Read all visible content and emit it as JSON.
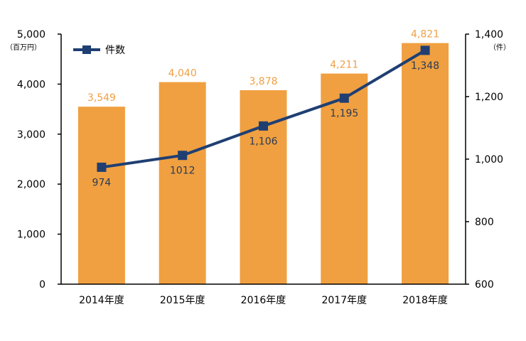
{
  "chart_data": {
    "type": "bar",
    "title": "",
    "categories": [
      "2014年度",
      "2015年度",
      "2016年度",
      "2017年度",
      "2018年度"
    ],
    "series": [
      {
        "type": "bar",
        "axis": "left",
        "color": "#f0a040",
        "label_color": "#f0a044",
        "values": [
          3549,
          4040,
          3878,
          4211,
          4821
        ],
        "labels": [
          "3,549",
          "4,040",
          "3,878",
          "4,211",
          "4,821"
        ]
      },
      {
        "name": "件数",
        "type": "line",
        "axis": "right",
        "color": "#1f3f73",
        "label_color": "#2b3a55",
        "values": [
          974,
          1012,
          1106,
          1195,
          1348
        ],
        "labels": [
          "974",
          "1012",
          "1,106",
          "1,195",
          "1,348"
        ]
      }
    ],
    "y_left": {
      "unit": "（百万円）",
      "ylim": [
        0,
        5000
      ],
      "ticks": [
        0,
        1000,
        2000,
        3000,
        4000,
        5000
      ],
      "tick_labels": [
        "0",
        "1,000",
        "2,000",
        "3,000",
        "4,000",
        "5,000"
      ]
    },
    "y_right": {
      "unit": "（件）",
      "ylim": [
        600,
        1400
      ],
      "ticks": [
        600,
        800,
        1000,
        1200,
        1400
      ],
      "tick_labels": [
        "600",
        "800",
        "1,000",
        "1,200",
        "1,400"
      ]
    },
    "legend": {
      "position": "top-left",
      "entries": [
        "件数"
      ]
    },
    "grid": false
  }
}
